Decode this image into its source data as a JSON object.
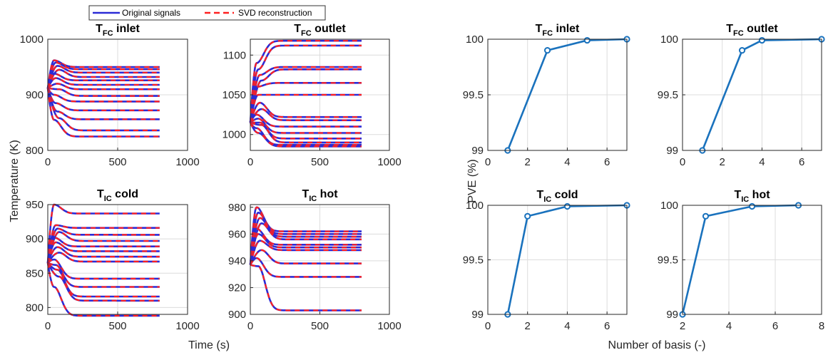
{
  "legend": {
    "entries": [
      {
        "label": "Original signals",
        "color": "#2b2bd6",
        "style": "solid"
      },
      {
        "label": "SVD reconstruction",
        "color": "#ff2020",
        "style": "dashed"
      }
    ]
  },
  "left_figure": {
    "xlabel": "Time (s)",
    "ylabel": "Temperature (K)",
    "colors": {
      "original": "#2b2bd6",
      "reconstruction": "#ff2020"
    }
  },
  "right_figure": {
    "xlabel": "Number of basis (-)",
    "ylabel": "PVE (%)",
    "colors": {
      "line": "#1a72bd"
    }
  },
  "chart_data": [
    {
      "type": "line",
      "panel": "left-1",
      "title": {
        "main": "T",
        "sub": "FC",
        "rest": " inlet"
      },
      "xlim": [
        0,
        1000
      ],
      "ylim": [
        800,
        1000
      ],
      "xticks": [
        0,
        500,
        1000
      ],
      "yticks": [
        800,
        900,
        1000
      ],
      "x_end": 800,
      "initial": 912,
      "steady_states": [
        950,
        946,
        940,
        932,
        926,
        918,
        910,
        898,
        888,
        872,
        856,
        836,
        825
      ],
      "peaks": [
        962,
        958,
        952,
        945,
        938,
        930,
        920,
        910,
        900,
        885,
        870,
        858,
        855
      ],
      "grid": true
    },
    {
      "type": "line",
      "panel": "left-2",
      "title": {
        "main": "T",
        "sub": "FC",
        "rest": " outlet"
      },
      "xlim": [
        0,
        1000
      ],
      "ylim": [
        980,
        1120
      ],
      "xticks": [
        0,
        500,
        1000
      ],
      "yticks": [
        1000,
        1050,
        1100
      ],
      "x_end": 800,
      "initial": 1015,
      "steady_states": [
        1118,
        1112,
        1085,
        1082,
        1065,
        1050,
        1022,
        1018,
        1010,
        1002,
        995,
        990,
        987,
        985
      ],
      "peaks": [
        1090,
        1082,
        1075,
        1068,
        1060,
        1050,
        1040,
        1032,
        1025,
        1020,
        1015,
        1012,
        1008,
        1002
      ],
      "grid": true
    },
    {
      "type": "line",
      "panel": "left-3",
      "title": {
        "main": "T",
        "sub": "IC",
        "rest": " cold"
      },
      "xlim": [
        0,
        1000
      ],
      "ylim": [
        790,
        950
      ],
      "xticks": [
        0,
        500,
        1000
      ],
      "yticks": [
        800,
        850,
        900,
        950
      ],
      "x_end": 800,
      "initial": 865,
      "steady_states": [
        937,
        916,
        906,
        897,
        889,
        882,
        874,
        867,
        842,
        830,
        816,
        810,
        788
      ],
      "peaks": [
        950,
        920,
        915,
        910,
        902,
        895,
        888,
        880,
        870,
        862,
        855,
        845,
        830
      ],
      "grid": true
    },
    {
      "type": "line",
      "panel": "left-4",
      "title": {
        "main": "T",
        "sub": "IC",
        "rest": " hot"
      },
      "xlim": [
        0,
        1000
      ],
      "ylim": [
        900,
        982
      ],
      "xticks": [
        0,
        500,
        1000
      ],
      "yticks": [
        900,
        920,
        940,
        960,
        980
      ],
      "x_end": 800,
      "initial": 937,
      "steady_states": [
        962,
        960,
        958,
        956,
        952,
        950,
        948,
        938,
        928,
        903
      ],
      "peaks": [
        980,
        976,
        972,
        968,
        964,
        960,
        955,
        948,
        942,
        936
      ],
      "grid": true
    },
    {
      "type": "line",
      "panel": "right-1",
      "title": {
        "main": "T",
        "sub": "FC",
        "rest": " inlet"
      },
      "x": [
        1,
        3,
        5,
        7
      ],
      "y": [
        99,
        99.9,
        99.99,
        100
      ],
      "xlim": [
        0,
        7
      ],
      "ylim": [
        99,
        100
      ],
      "xticks": [
        0,
        2,
        4,
        6
      ],
      "yticks": [
        99,
        99.5,
        100
      ],
      "grid": true
    },
    {
      "type": "line",
      "panel": "right-2",
      "title": {
        "main": "T",
        "sub": "FC",
        "rest": " outlet"
      },
      "x": [
        1,
        3,
        4,
        7
      ],
      "y": [
        99,
        99.9,
        99.99,
        100
      ],
      "xlim": [
        0,
        7
      ],
      "ylim": [
        99,
        100
      ],
      "xticks": [
        0,
        2,
        4,
        6
      ],
      "yticks": [
        99,
        99.5,
        100
      ],
      "grid": true
    },
    {
      "type": "line",
      "panel": "right-3",
      "title": {
        "main": "T",
        "sub": "IC",
        "rest": " cold"
      },
      "x": [
        1,
        2,
        4,
        7
      ],
      "y": [
        99,
        99.9,
        99.99,
        100
      ],
      "xlim": [
        0,
        7
      ],
      "ylim": [
        99,
        100
      ],
      "xticks": [
        0,
        2,
        4,
        6
      ],
      "yticks": [
        99,
        99.5,
        100
      ],
      "grid": true
    },
    {
      "type": "line",
      "panel": "right-4",
      "title": {
        "main": "T",
        "sub": "IC",
        "rest": " hot"
      },
      "x": [
        2,
        3,
        5,
        7
      ],
      "y": [
        99,
        99.9,
        99.99,
        100
      ],
      "xlim": [
        2,
        8
      ],
      "ylim": [
        99,
        100
      ],
      "xticks": [
        2,
        4,
        6,
        8
      ],
      "yticks": [
        99,
        99.5,
        100
      ],
      "grid": true
    }
  ]
}
